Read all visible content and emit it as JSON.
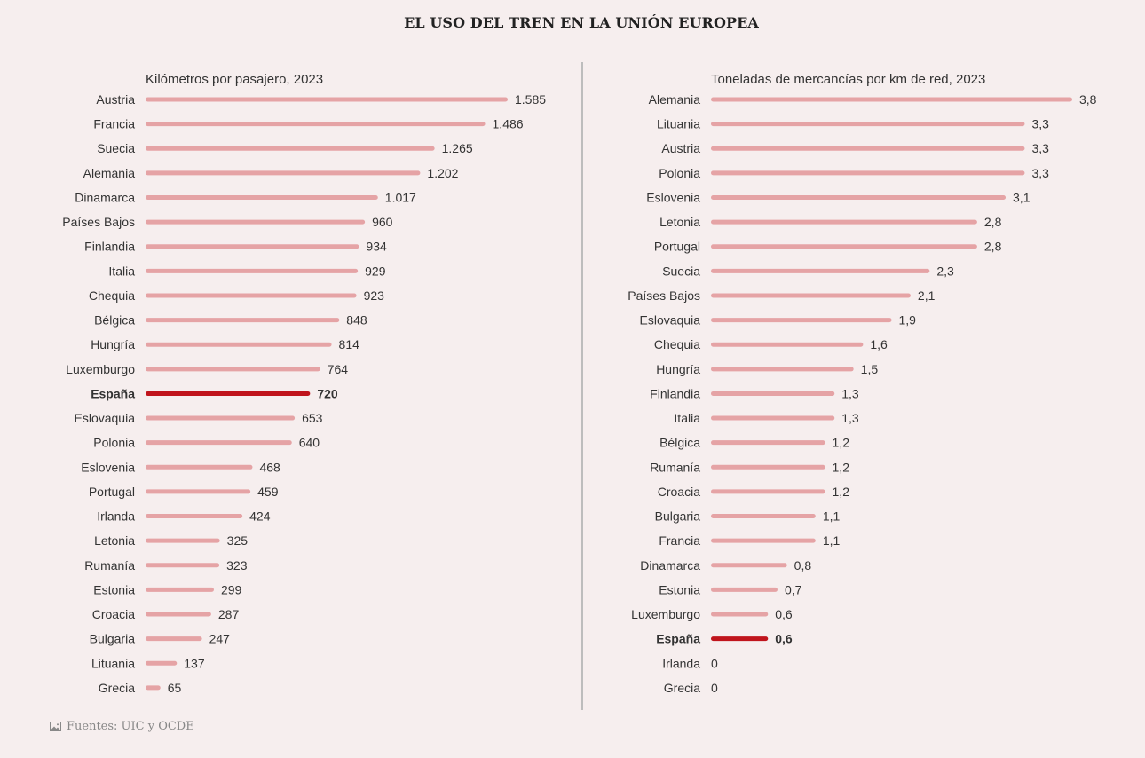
{
  "title": "EL USO DEL TREN EN LA UNIÓN EUROPEA",
  "source": "Fuentes: UIC y OCDE",
  "source_icon": "image-icon",
  "colors": {
    "bar": "#e5a3a5",
    "highlight": "#c0141c",
    "text": "#333333"
  },
  "chart_data": [
    {
      "type": "bar",
      "orientation": "horizontal",
      "title": "Kilómetros por pasajero, 2023",
      "highlight": "España",
      "xlim": [
        0,
        1585
      ],
      "categories": [
        "Austria",
        "Francia",
        "Suecia",
        "Alemania",
        "Dinamarca",
        "Países Bajos",
        "Finlandia",
        "Italia",
        "Chequia",
        "Bélgica",
        "Hungría",
        "Luxemburgo",
        "España",
        "Eslovaquia",
        "Polonia",
        "Eslovenia",
        "Portugal",
        "Irlanda",
        "Letonia",
        "Rumanía",
        "Estonia",
        "Croacia",
        "Bulgaria",
        "Lituania",
        "Grecia"
      ],
      "values": [
        1585,
        1486,
        1265,
        1202,
        1017,
        960,
        934,
        929,
        923,
        848,
        814,
        764,
        720,
        653,
        640,
        468,
        459,
        424,
        325,
        323,
        299,
        287,
        247,
        137,
        65
      ],
      "labels": [
        "1.585",
        "1.486",
        "1.265",
        "1.202",
        "1.017",
        "960",
        "934",
        "929",
        "923",
        "848",
        "814",
        "764",
        "720",
        "653",
        "640",
        "468",
        "459",
        "424",
        "325",
        "323",
        "299",
        "287",
        "247",
        "137",
        "65"
      ]
    },
    {
      "type": "bar",
      "orientation": "horizontal",
      "title": "Toneladas de mercancías por km de red, 2023",
      "highlight": "España",
      "xlim": [
        0,
        3.8
      ],
      "categories": [
        "Alemania",
        "Lituania",
        "Austria",
        "Polonia",
        "Eslovenia",
        "Letonia",
        "Portugal",
        "Suecia",
        "Países Bajos",
        "Eslovaquia",
        "Chequia",
        "Hungría",
        "Finlandia",
        "Italia",
        "Bélgica",
        "Rumanía",
        "Croacia",
        "Bulgaria",
        "Francia",
        "Dinamarca",
        "Estonia",
        "Luxemburgo",
        "España",
        "Irlanda",
        "Grecia"
      ],
      "values": [
        3.8,
        3.3,
        3.3,
        3.3,
        3.1,
        2.8,
        2.8,
        2.3,
        2.1,
        1.9,
        1.6,
        1.5,
        1.3,
        1.3,
        1.2,
        1.2,
        1.2,
        1.1,
        1.1,
        0.8,
        0.7,
        0.6,
        0.6,
        0,
        0
      ],
      "labels": [
        "3,8",
        "3,3",
        "3,3",
        "3,3",
        "3,1",
        "2,8",
        "2,8",
        "2,3",
        "2,1",
        "1,9",
        "1,6",
        "1,5",
        "1,3",
        "1,3",
        "1,2",
        "1,2",
        "1,2",
        "1,1",
        "1,1",
        "0,8",
        "0,7",
        "0,6",
        "0,6",
        "0",
        "0"
      ]
    }
  ]
}
